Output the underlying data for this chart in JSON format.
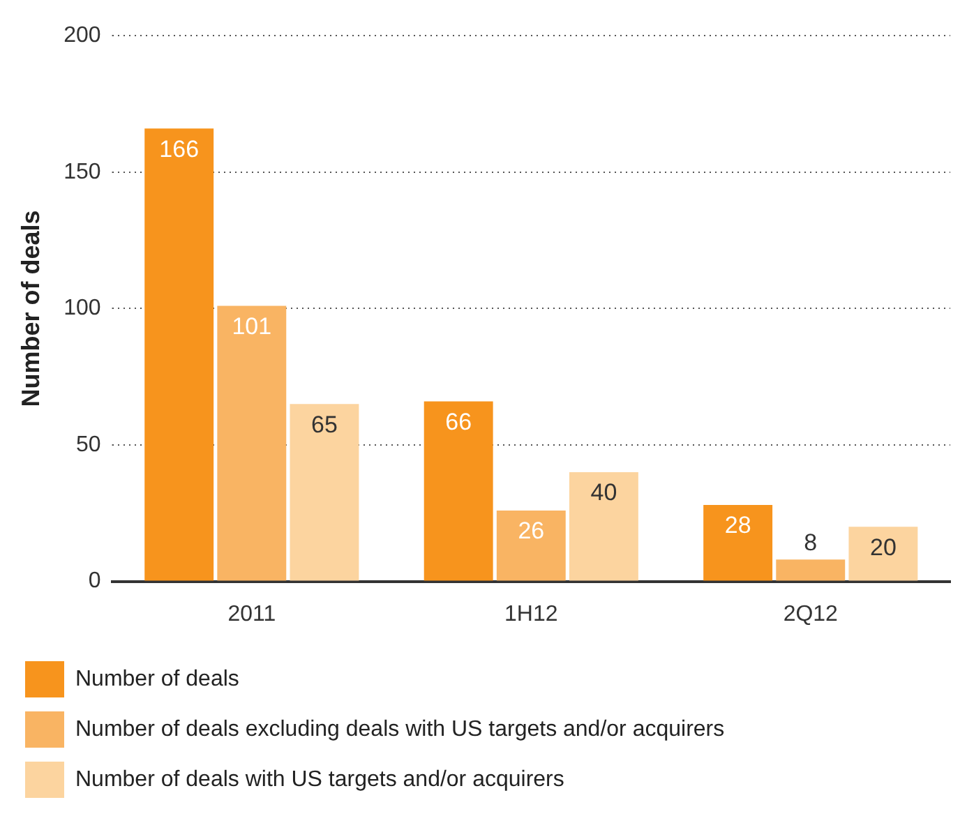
{
  "chart_data": {
    "type": "bar",
    "ylabel": "Number of deals",
    "categories": [
      "2011",
      "1H12",
      "2Q12"
    ],
    "series": [
      {
        "name": "Number of deals",
        "color": "#f7941d",
        "values": [
          166,
          66,
          28
        ]
      },
      {
        "name": "Number of deals excluding deals with US targets and/or acquirers",
        "color": "#f9b463",
        "values": [
          101,
          26,
          8
        ]
      },
      {
        "name": "Number of deals with US targets and/or acquirers",
        "color": "#fcd49f",
        "values": [
          65,
          40,
          20
        ]
      }
    ],
    "ylim": [
      0,
      200
    ],
    "yticks": [
      0,
      50,
      100,
      150,
      200
    ],
    "grid": "y",
    "legend": "bottom",
    "data_labels": true
  }
}
